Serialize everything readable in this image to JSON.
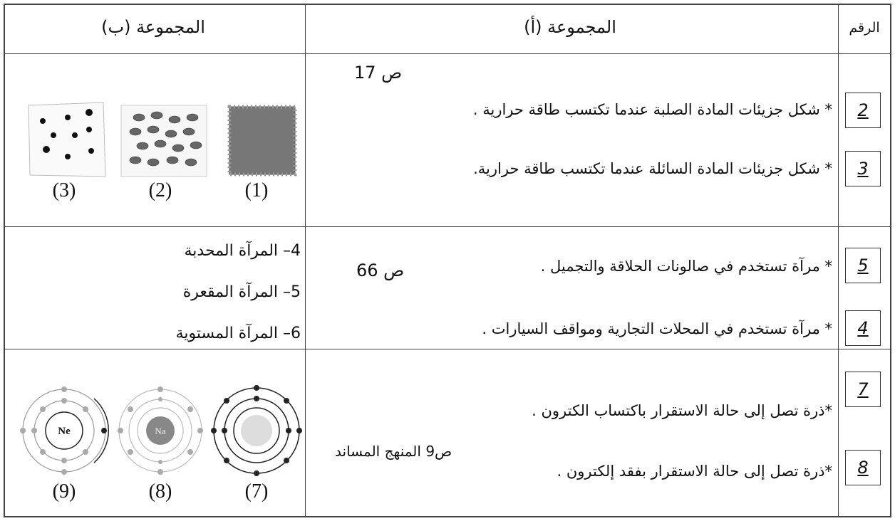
{
  "header": {
    "number": "الرقم",
    "group_a": "المجموعة (أ)",
    "group_b": "المجموعة (ب)"
  },
  "rows": [
    {
      "numbers": [
        "2",
        "3"
      ],
      "page_ref": "ص 17",
      "items": [
        "* شكل جزيئات المادة الصلبة عندما تكتسب طاقة حرارية .",
        "* شكل جزيئات المادة السائلة عندما تكتسب طاقة حرارية."
      ],
      "figure_labels": [
        "(1)",
        "(2)",
        "(3)"
      ]
    },
    {
      "numbers": [
        "5",
        "4"
      ],
      "page_ref": "ص 66",
      "items": [
        "* مرآة تستخدم في صالونات الحلاقة والتجميل .",
        "* مرآة تستخدم في المحلات التجارية ومواقف السيارات ."
      ],
      "options": [
        "4– المرآة المحدبة",
        "5– المرآة المقعرة",
        "6– المرآة المستوية"
      ]
    },
    {
      "numbers": [
        "7",
        "8"
      ],
      "page_ref": "ص9 المنهج المساند",
      "items": [
        "*ذرة تصل إلى حالة الاستقرار باكتساب الكترون .",
        "*ذرة تصل إلى حالة الاستقرار بفقد إلكترون ."
      ],
      "figure_labels": [
        "(7)",
        "(8)",
        "(9)"
      ],
      "atom_labels": [
        "Na",
        "Ne"
      ]
    }
  ]
}
